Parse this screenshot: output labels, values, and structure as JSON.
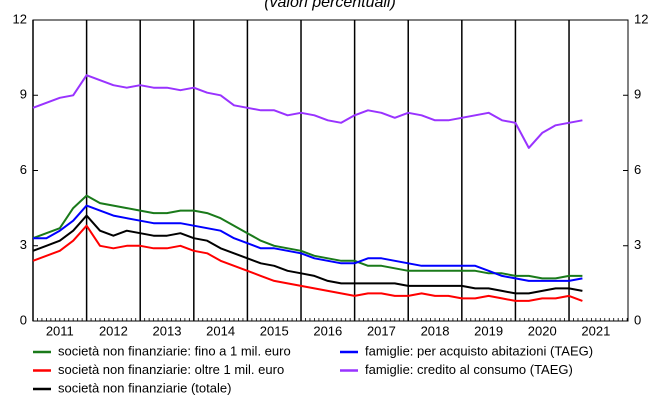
{
  "chart_data": {
    "type": "line",
    "subtitle": "(valori percentuali)",
    "x": [
      2011.0,
      2011.25,
      2011.5,
      2011.75,
      2012.0,
      2012.25,
      2012.5,
      2012.75,
      2013.0,
      2013.25,
      2013.5,
      2013.75,
      2014.0,
      2014.25,
      2014.5,
      2014.75,
      2015.0,
      2015.25,
      2015.5,
      2015.75,
      2016.0,
      2016.25,
      2016.5,
      2016.75,
      2017.0,
      2017.25,
      2017.5,
      2017.75,
      2018.0,
      2018.25,
      2018.5,
      2018.75,
      2019.0,
      2019.25,
      2019.5,
      2019.75,
      2020.0,
      2020.25,
      2020.5,
      2020.75,
      2021.0,
      2021.25
    ],
    "series": [
      {
        "name": "società non finanziarie: fino a 1 mil. euro",
        "color": "#1a7a1a",
        "values": [
          3.3,
          3.5,
          3.7,
          4.5,
          5.0,
          4.7,
          4.6,
          4.5,
          4.4,
          4.3,
          4.3,
          4.4,
          4.4,
          4.3,
          4.1,
          3.8,
          3.5,
          3.2,
          3.0,
          2.9,
          2.8,
          2.6,
          2.5,
          2.4,
          2.4,
          2.2,
          2.2,
          2.1,
          2.0,
          2.0,
          2.0,
          2.0,
          2.0,
          2.0,
          1.9,
          1.9,
          1.8,
          1.8,
          1.7,
          1.7,
          1.8,
          1.8
        ]
      },
      {
        "name": "società non finanziarie: oltre 1 mil. euro",
        "color": "#ff0000",
        "values": [
          2.4,
          2.6,
          2.8,
          3.2,
          3.8,
          3.0,
          2.9,
          3.0,
          3.0,
          2.9,
          2.9,
          3.0,
          2.8,
          2.7,
          2.4,
          2.2,
          2.0,
          1.8,
          1.6,
          1.5,
          1.4,
          1.3,
          1.2,
          1.1,
          1.0,
          1.1,
          1.1,
          1.0,
          1.0,
          1.1,
          1.0,
          1.0,
          0.9,
          0.9,
          1.0,
          0.9,
          0.8,
          0.8,
          0.9,
          0.9,
          1.0,
          0.8
        ]
      },
      {
        "name": "società non finanziarie (totale)",
        "color": "#000000",
        "values": [
          2.8,
          3.0,
          3.2,
          3.6,
          4.2,
          3.6,
          3.4,
          3.6,
          3.5,
          3.4,
          3.4,
          3.5,
          3.3,
          3.2,
          2.9,
          2.7,
          2.5,
          2.3,
          2.2,
          2.0,
          1.9,
          1.8,
          1.6,
          1.5,
          1.5,
          1.5,
          1.5,
          1.5,
          1.4,
          1.4,
          1.4,
          1.4,
          1.4,
          1.3,
          1.3,
          1.2,
          1.1,
          1.1,
          1.2,
          1.3,
          1.3,
          1.2
        ]
      },
      {
        "name": "famiglie: per acquisto abitazioni (TAEG)",
        "color": "#0000ff",
        "values": [
          3.3,
          3.3,
          3.6,
          4.0,
          4.6,
          4.4,
          4.2,
          4.1,
          4.0,
          3.9,
          3.9,
          3.9,
          3.8,
          3.7,
          3.6,
          3.3,
          3.1,
          2.9,
          2.9,
          2.8,
          2.7,
          2.5,
          2.4,
          2.3,
          2.3,
          2.5,
          2.5,
          2.4,
          2.3,
          2.2,
          2.2,
          2.2,
          2.2,
          2.2,
          2.0,
          1.8,
          1.7,
          1.6,
          1.6,
          1.6,
          1.6,
          1.7
        ]
      },
      {
        "name": "famiglie: credito al consumo (TAEG)",
        "color": "#9933ff",
        "values": [
          8.5,
          8.7,
          8.9,
          9.0,
          9.8,
          9.6,
          9.4,
          9.3,
          9.4,
          9.3,
          9.3,
          9.2,
          9.3,
          9.1,
          9.0,
          8.6,
          8.5,
          8.4,
          8.4,
          8.2,
          8.3,
          8.2,
          8.0,
          7.9,
          8.2,
          8.4,
          8.3,
          8.1,
          8.3,
          8.2,
          8.0,
          8.0,
          8.1,
          8.2,
          8.3,
          8.0,
          7.9,
          6.9,
          7.5,
          7.8,
          7.9,
          8.0
        ]
      }
    ],
    "xlim": [
      2011.0,
      2022.1
    ],
    "xticks": [
      {
        "value": 2011,
        "label": "2011"
      },
      {
        "value": 2012,
        "label": "2012"
      },
      {
        "value": 2013,
        "label": "2013"
      },
      {
        "value": 2014,
        "label": "2014"
      },
      {
        "value": 2015,
        "label": "2015"
      },
      {
        "value": 2016,
        "label": "2016"
      },
      {
        "value": 2017,
        "label": "2017"
      },
      {
        "value": 2018,
        "label": "2018"
      },
      {
        "value": 2019,
        "label": "2019"
      },
      {
        "value": 2020,
        "label": "2020"
      },
      {
        "value": 2021,
        "label": "2021"
      }
    ],
    "ylim": [
      0,
      12
    ],
    "yticks": [
      0,
      3,
      6,
      9,
      12
    ],
    "y2lim": [
      0,
      12
    ],
    "y2ticks": [
      0,
      3,
      6,
      9,
      12
    ],
    "grid": true
  }
}
